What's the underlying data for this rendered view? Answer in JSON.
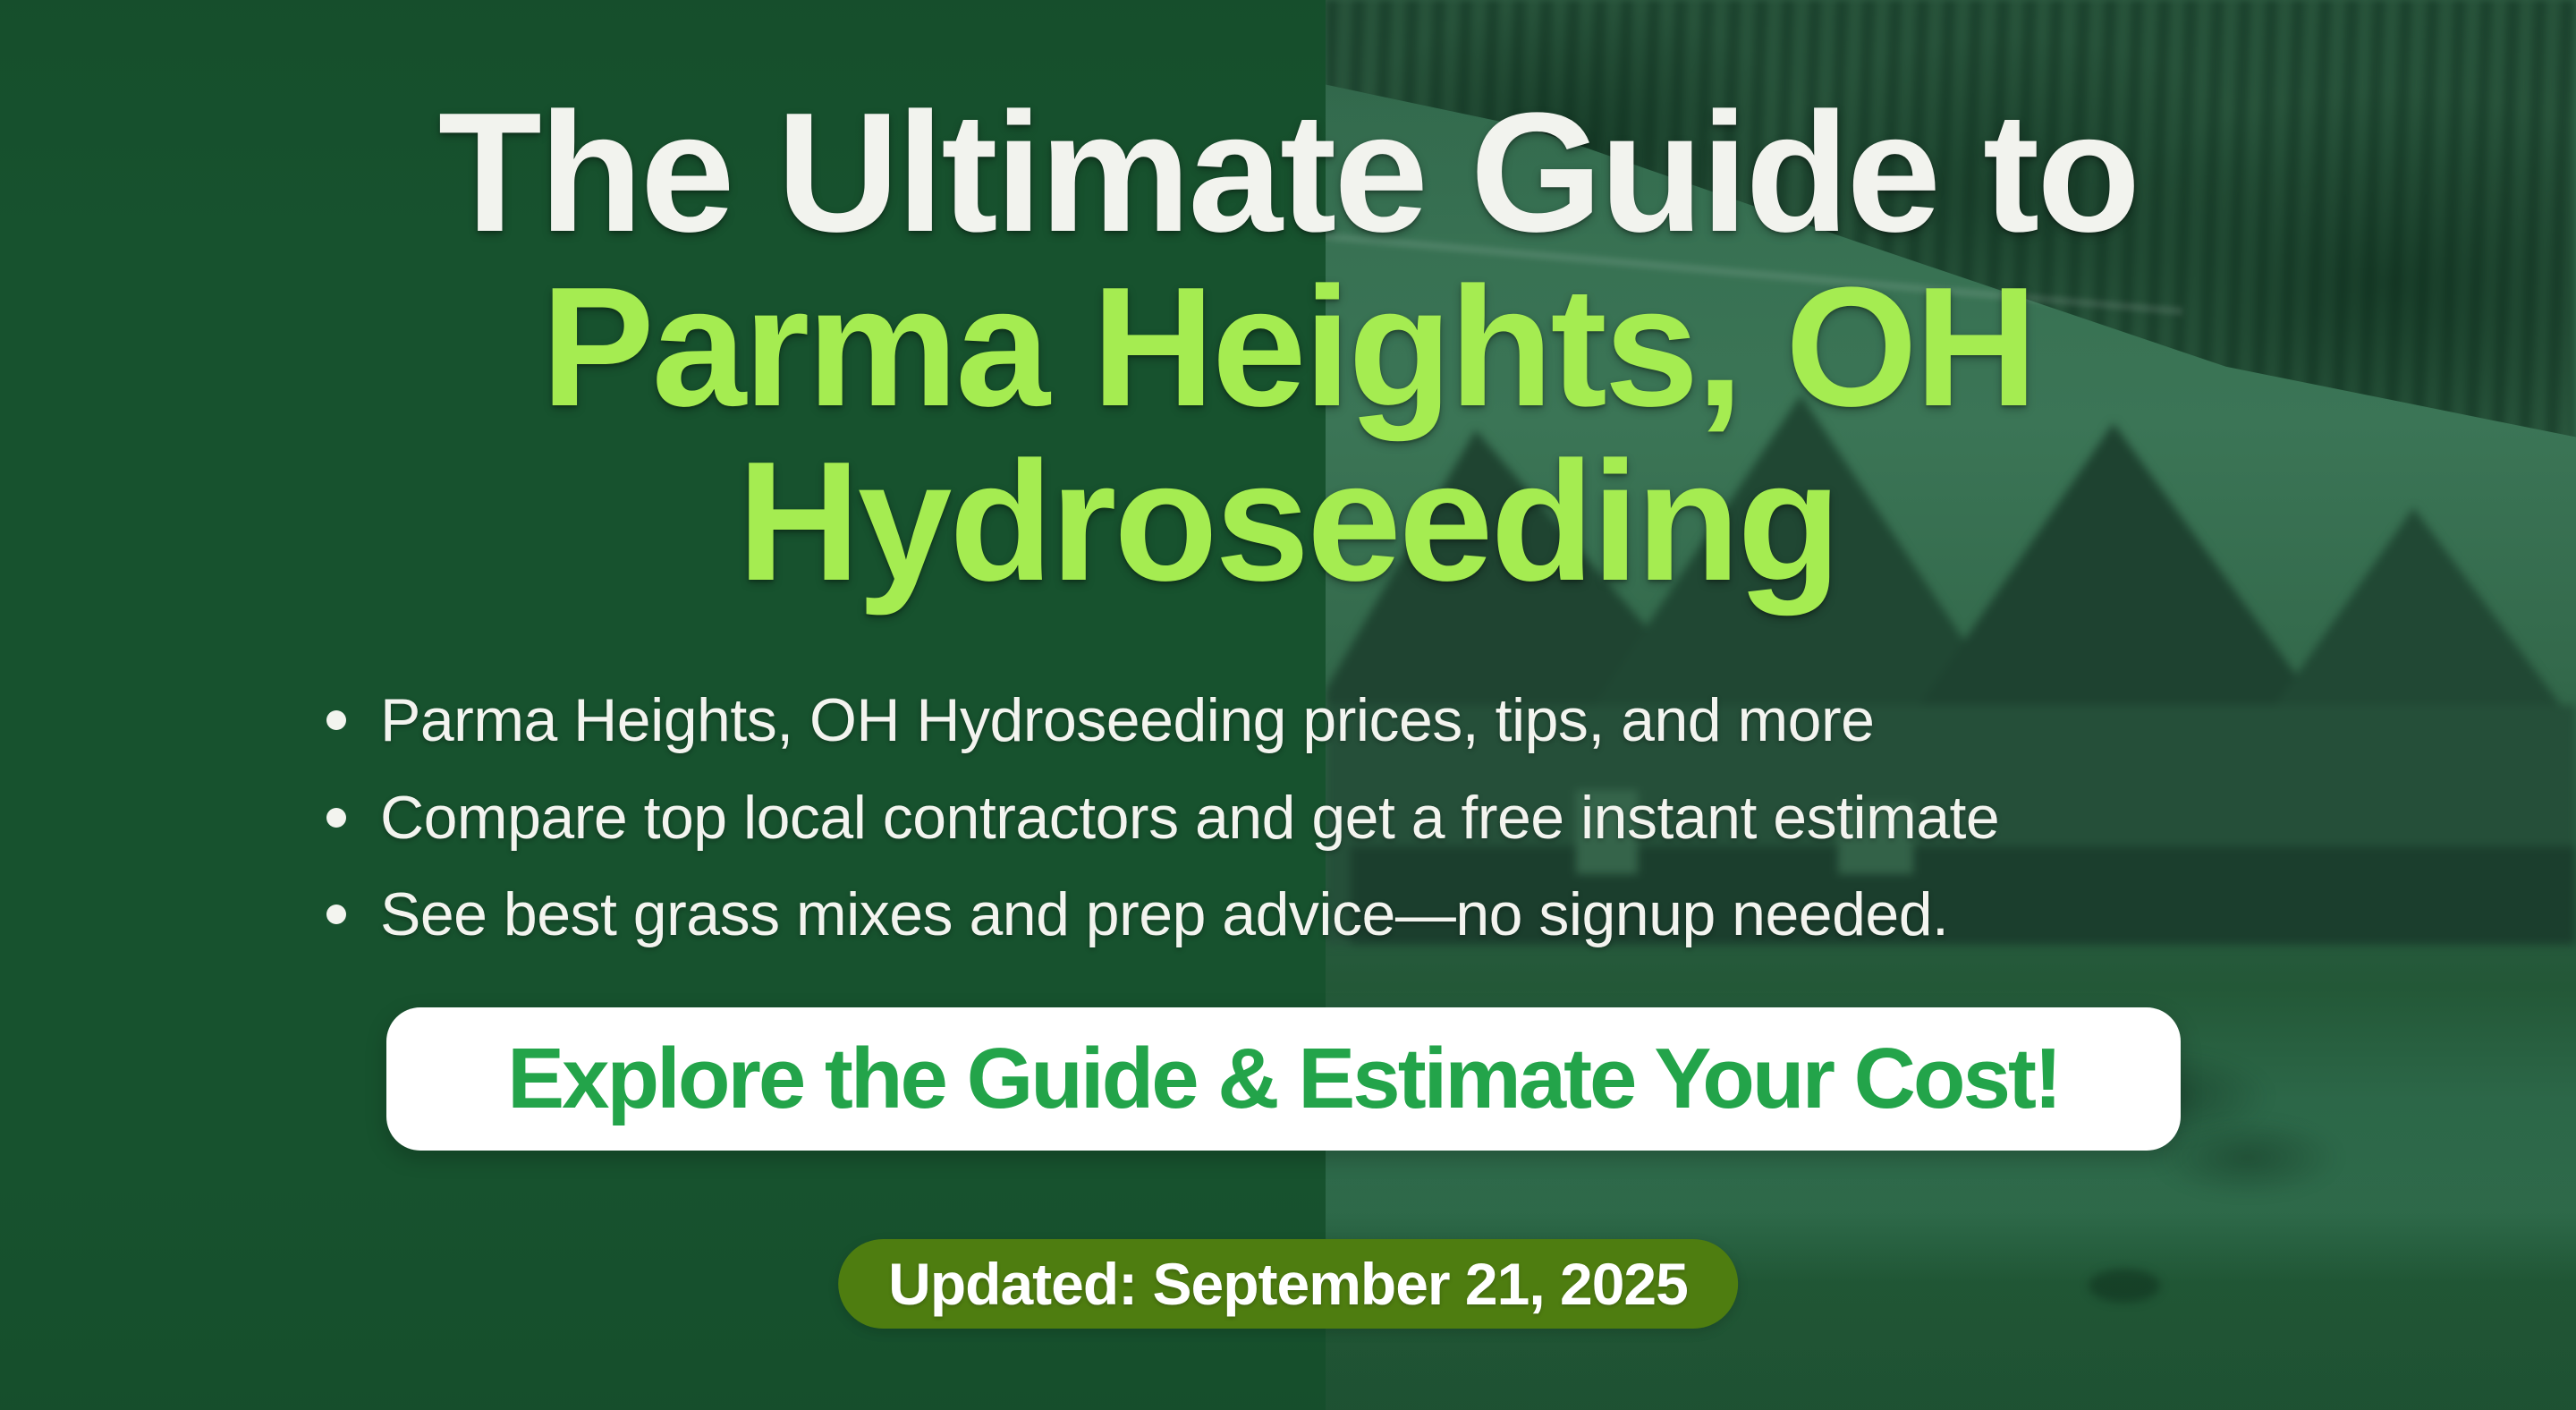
{
  "hero": {
    "title": {
      "line1": "The Ultimate Guide to",
      "line2": "Parma Heights, OH",
      "line3": "Hydroseeding"
    },
    "bullets": {
      "items": [
        "Parma Heights, OH Hydroseeding prices, tips, and more",
        "Compare top local contractors and get a free instant estimate",
        "See best grass mixes and prep advice—no signup needed."
      ]
    },
    "cta": {
      "label": "Explore the Guide & Estimate Your Cost!"
    },
    "badge": {
      "label": "Updated: September 21, 2025"
    },
    "colors": {
      "background_green": "#17522e",
      "photo_lawn_green": "#3a7355",
      "title_primary": "#f2f3ee",
      "title_accent": "#a5ec51",
      "cta_background": "#ffffff",
      "cta_text_green": "#23a44a",
      "badge_background": "#4e7d10",
      "badge_text": "#ffffff"
    }
  }
}
